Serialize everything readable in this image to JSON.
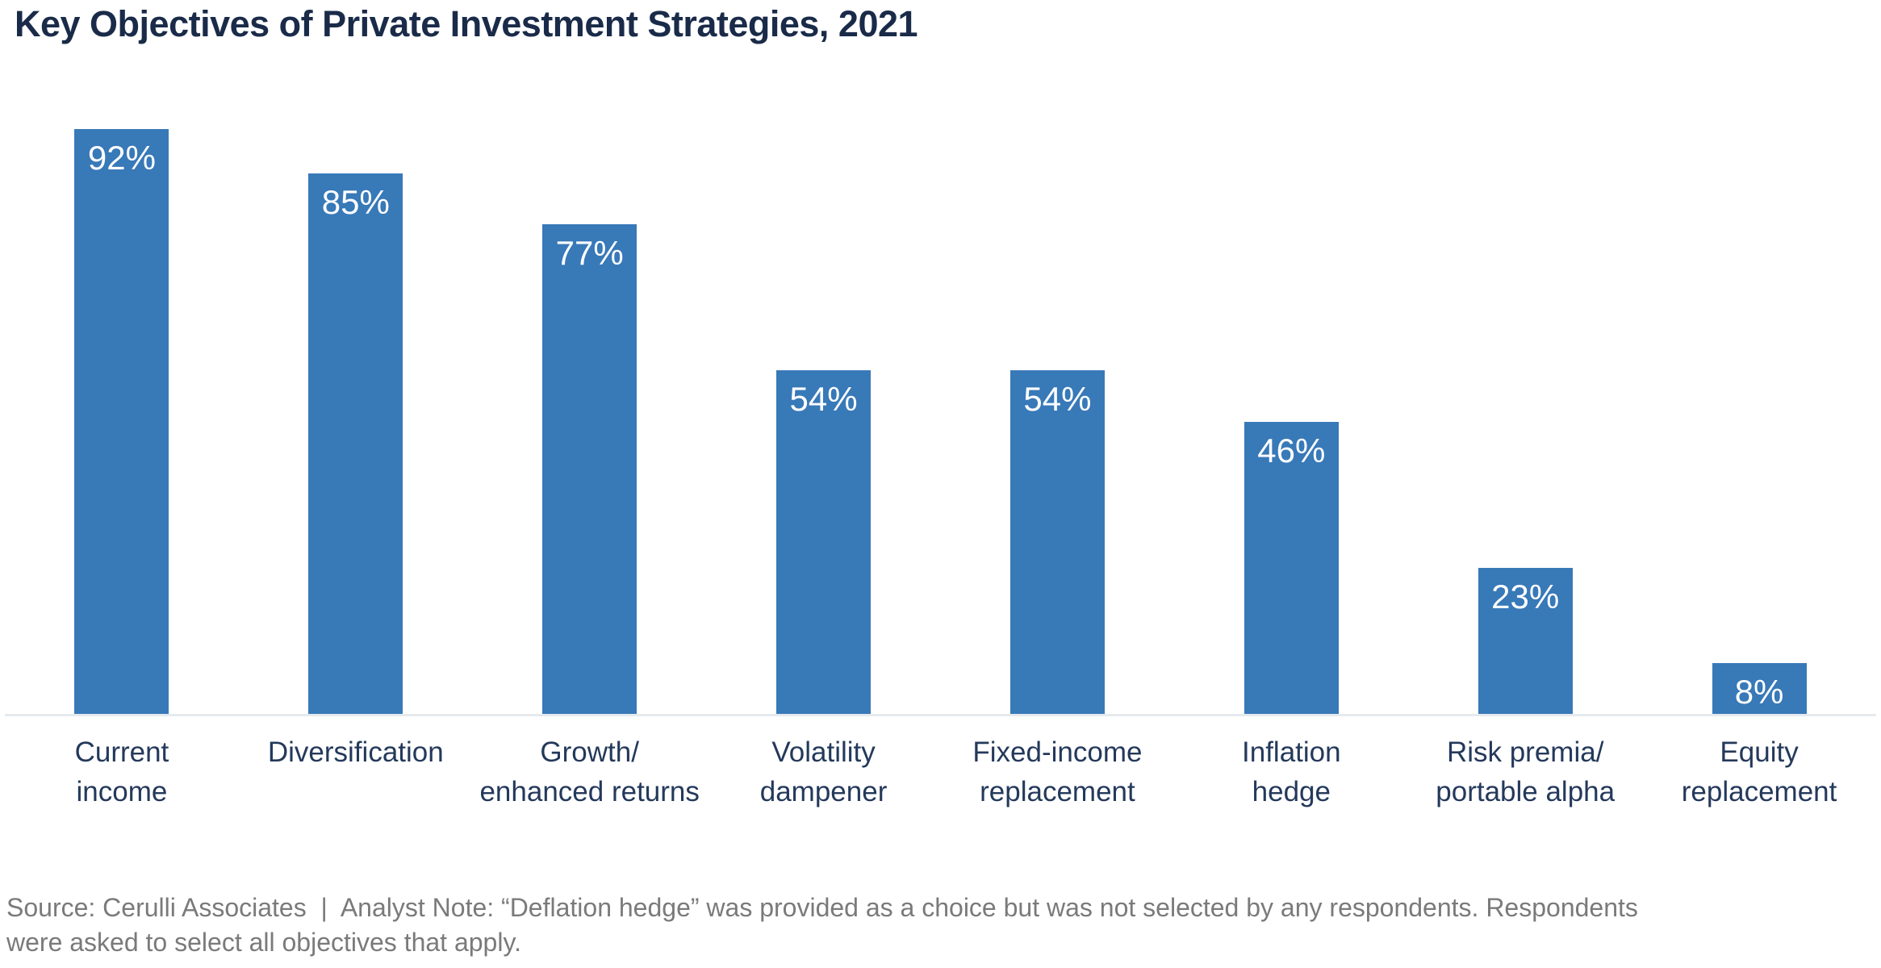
{
  "page": {
    "title": "Key Objectives of Private Investment Strategies, 2021",
    "footer": "Source: Cerulli Associates  |  Analyst Note: “Deflation hedge” was provided as a choice but was not selected by any respondents. Respondents\nwere asked to select all objectives that apply."
  },
  "colors": {
    "bar": "#3879B8",
    "title_text": "#1A2B49",
    "category_text": "#24395B",
    "value_text": "#FFFFFF",
    "footer_text": "#7A7A7A",
    "baseline": "#E5EAEE",
    "background": "#FFFFFF"
  },
  "chart_data": {
    "type": "bar",
    "title": "Key Objectives of Private Investment Strategies, 2021",
    "categories": [
      "Current\nincome",
      "Diversification",
      "Growth/\nenhanced returns",
      "Volatility\ndampener",
      "Fixed-income\nreplacement",
      "Inflation\nhedge",
      "Risk premia/\nportable alpha",
      "Equity\nreplacement"
    ],
    "values": [
      92,
      85,
      77,
      54,
      54,
      46,
      23,
      8
    ],
    "value_labels": [
      "92%",
      "85%",
      "77%",
      "54%",
      "54%",
      "46%",
      "23%",
      "8%"
    ],
    "unit": "%",
    "ylim": [
      0,
      100
    ],
    "grid": false,
    "legend": false,
    "bar_color": "#3879B8",
    "value_label_position": "inside-top",
    "source_note": "Source: Cerulli Associates  |  Analyst Note: “Deflation hedge” was provided as a choice but was not selected by any respondents. Respondents were asked to select all objectives that apply."
  }
}
